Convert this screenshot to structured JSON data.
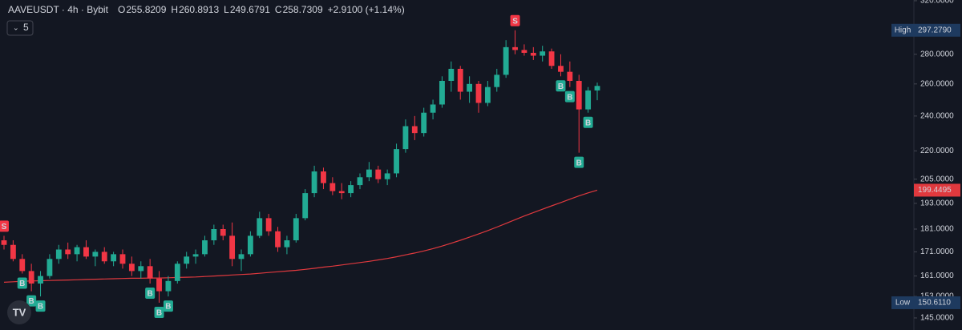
{
  "chart_data": {
    "type": "candlestick",
    "symbol": "AAVEUSDT · 4h · Bybit",
    "ohlc_keys": [
      "O",
      "H",
      "L",
      "C"
    ],
    "change": "+2.9100 (+1.14%)",
    "indicator_count": "5",
    "log_scale": true,
    "grid": false,
    "up_color": "#22ab94",
    "down_color": "#f23645",
    "open": [
      176,
      174,
      168,
      163,
      158,
      161,
      168,
      172,
      170,
      173,
      169,
      171,
      167,
      170,
      166,
      163,
      165,
      160,
      155,
      159,
      166,
      169,
      170,
      176,
      181,
      178,
      168,
      170,
      178,
      186,
      180,
      173,
      176,
      186,
      198,
      209,
      203,
      199,
      198,
      202,
      206,
      210,
      205,
      208,
      221,
      234,
      230,
      242,
      247,
      262,
      270,
      255,
      260,
      248,
      258,
      266,
      285,
      283,
      281,
      279,
      282,
      272,
      268,
      262,
      244,
      255.8209
    ],
    "high": [
      178,
      176,
      170,
      166,
      163,
      170,
      174,
      175,
      174,
      176,
      172,
      173,
      171,
      172,
      169,
      167,
      168,
      163,
      161,
      167,
      171,
      172,
      178,
      183,
      183,
      184,
      172,
      180,
      189,
      188,
      182,
      178,
      188,
      200,
      212,
      211,
      206,
      203,
      204,
      208,
      214,
      212,
      210,
      224,
      238,
      240,
      245,
      250,
      265,
      275,
      272,
      265,
      262,
      262,
      270,
      290,
      297.279,
      287,
      285,
      286,
      284,
      280,
      275,
      266,
      258,
      260.8913
    ],
    "low": [
      172,
      167,
      162,
      155,
      153,
      160,
      166,
      168,
      167,
      168,
      165,
      166,
      165,
      164,
      161,
      160,
      158,
      150.611,
      153,
      158,
      164,
      166,
      169,
      174,
      176,
      165,
      163,
      169,
      177,
      178,
      171,
      170,
      175,
      185,
      196,
      200,
      197,
      195,
      196,
      200,
      204,
      203,
      202,
      206,
      219,
      226,
      228,
      238,
      245,
      255,
      250,
      248,
      242,
      246,
      255,
      264,
      280,
      279,
      276,
      275,
      270,
      265,
      258,
      219,
      242,
      249.6791
    ],
    "close": [
      174,
      168,
      163,
      158,
      161,
      168,
      172,
      170,
      173,
      169,
      171,
      167,
      170,
      166,
      163,
      165,
      160,
      155,
      159,
      166,
      169,
      170,
      176,
      181,
      178,
      168,
      170,
      178,
      186,
      180,
      173,
      176,
      186,
      198,
      209,
      203,
      199,
      198,
      202,
      206,
      210,
      205,
      208,
      221,
      234,
      230,
      242,
      247,
      262,
      270,
      255,
      260,
      248,
      258,
      266,
      285,
      283,
      281,
      279,
      282,
      272,
      268,
      262,
      244,
      255.8209,
      258.7309
    ],
    "signals": [
      "S",
      null,
      "B",
      "B",
      "B",
      null,
      null,
      null,
      null,
      null,
      null,
      null,
      null,
      null,
      null,
      null,
      "B",
      "B",
      "B",
      null,
      null,
      null,
      null,
      null,
      null,
      null,
      null,
      null,
      null,
      null,
      null,
      null,
      null,
      null,
      null,
      null,
      null,
      null,
      null,
      null,
      null,
      null,
      null,
      null,
      null,
      null,
      null,
      null,
      null,
      null,
      null,
      null,
      null,
      null,
      null,
      null,
      "S",
      null,
      null,
      null,
      null,
      "B",
      "B",
      "B",
      "B",
      null
    ],
    "ma": {
      "color": "#e0393e",
      "label": "199.4495",
      "values": [
        158.5,
        158.7,
        158.9,
        159.0,
        159.1,
        159.2,
        159.3,
        159.4,
        159.5,
        159.6,
        159.7,
        159.8,
        159.9,
        160.0,
        160.1,
        160.1,
        160.2,
        160.2,
        160.3,
        160.4,
        160.5,
        160.6,
        160.8,
        161.0,
        161.2,
        161.4,
        161.6,
        161.8,
        162.1,
        162.4,
        162.7,
        163.0,
        163.3,
        163.7,
        164.1,
        164.6,
        165.0,
        165.5,
        166.0,
        166.5,
        167.0,
        167.6,
        168.2,
        168.9,
        169.7,
        170.5,
        171.4,
        172.4,
        173.5,
        174.7,
        176.0,
        177.4,
        178.8,
        180.3,
        181.9,
        183.6,
        185.3,
        187.0,
        188.6,
        190.2,
        191.8,
        193.4,
        195.0,
        196.6,
        198.1,
        199.4495
      ]
    },
    "ylim": [
      140.7,
      320.6
    ],
    "yticks": [
      {
        "value": 320,
        "label": "320.0000"
      },
      {
        "value": 280,
        "label": "280.0000"
      },
      {
        "value": 260,
        "label": "260.0000"
      },
      {
        "value": 240,
        "label": "240.0000"
      },
      {
        "value": 220,
        "label": "220.0000"
      },
      {
        "value": 205,
        "label": "205.0000"
      },
      {
        "value": 193,
        "label": "193.0000"
      },
      {
        "value": 181,
        "label": "181.0000"
      },
      {
        "value": 171,
        "label": "171.0000"
      },
      {
        "value": 161,
        "label": "161.0000"
      },
      {
        "value": 153,
        "label": "153.0000"
      },
      {
        "value": 145,
        "label": "145.0000"
      }
    ],
    "high_marker": {
      "text": "High",
      "value": 297.279,
      "label": "297.2790"
    },
    "low_marker": {
      "text": "Low",
      "value": 150.611,
      "label": "150.6110"
    }
  }
}
